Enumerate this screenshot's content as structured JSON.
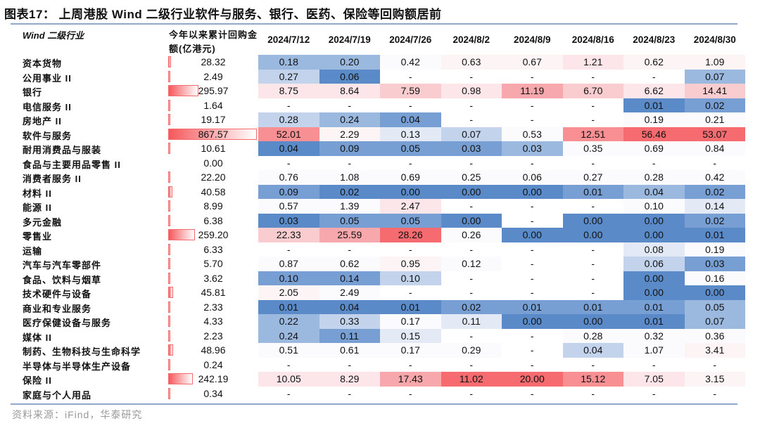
{
  "title": "图表17：  上周港股 Wind 二级行业软件与服务、银行、医药、保险等回购额居前",
  "source": "资料来源：iFind，华泰研究",
  "chart_data": {
    "type": "table",
    "title": "图表17：  上周港股 Wind 二级行业软件与服务、银行、医药、保险等回购额居前",
    "columns": {
      "name": "Wind 二级行业",
      "cumulative": "今年以来累计回购金额(亿港元)",
      "dates": [
        "2024/7/12",
        "2024/7/19",
        "2024/7/26",
        "2024/8/2",
        "2024/8/9",
        "2024/8/16",
        "2024/8/23",
        "2024/8/30"
      ]
    },
    "palette": {
      "b4": "#5a8bc8",
      "b3": "#779fd3",
      "b2": "#9bb8df",
      "b1": "#c2d3eb",
      "b0": "#e3eaf5",
      "w": "#fbfbfe",
      "p0": "#fdf4f6",
      "p1": "#fce6e9",
      "p2": "#f9cdd0",
      "p3": "#f7a8ac",
      "p4": "#f78f93",
      "p5": "#f56b6f",
      "n": "#ffffff"
    },
    "bar_color": "#f5585c",
    "bar_max": 867.57,
    "rows": [
      {
        "name": "资本货物",
        "cum": "28.32",
        "values": [
          "0.18",
          "0.20",
          "0.42",
          "0.63",
          "0.67",
          "1.21",
          "0.62",
          "1.09"
        ],
        "colors": [
          "b2",
          "b2",
          "w",
          "p0",
          "p0",
          "p1",
          "p0",
          "p0"
        ]
      },
      {
        "name": "公用事业 II",
        "cum": "2.49",
        "values": [
          "0.27",
          "0.06",
          "-",
          "-",
          "-",
          "-",
          "-",
          "0.07"
        ],
        "colors": [
          "b1",
          "b4",
          "n",
          "n",
          "n",
          "n",
          "n",
          "b2"
        ]
      },
      {
        "name": "银行",
        "cum": "295.97",
        "values": [
          "8.75",
          "8.64",
          "7.59",
          "0.98",
          "11.19",
          "6.70",
          "6.62",
          "14.41"
        ],
        "colors": [
          "p1",
          "p1",
          "p2",
          "p1",
          "p3",
          "p2",
          "p1",
          "p2"
        ]
      },
      {
        "name": "电信服务 II",
        "cum": "1.64",
        "values": [
          "-",
          "-",
          "-",
          "-",
          "-",
          "-",
          "0.01",
          "0.02"
        ],
        "colors": [
          "n",
          "n",
          "n",
          "n",
          "n",
          "n",
          "b4",
          "b3"
        ]
      },
      {
        "name": "房地产 II",
        "cum": "19.17",
        "values": [
          "0.28",
          "0.24",
          "0.04",
          "-",
          "-",
          "-",
          "0.19",
          "0.21"
        ],
        "colors": [
          "b1",
          "b2",
          "b3",
          "n",
          "n",
          "n",
          "w",
          "w"
        ]
      },
      {
        "name": "软件与服务",
        "cum": "867.57",
        "values": [
          "52.01",
          "2.29",
          "0.13",
          "0.07",
          "0.53",
          "12.51",
          "56.46",
          "53.07"
        ],
        "colors": [
          "p4",
          "p0",
          "b0",
          "b1",
          "w",
          "p4",
          "p5",
          "p5"
        ]
      },
      {
        "name": "耐用消费品与服装",
        "cum": "10.61",
        "values": [
          "0.04",
          "0.09",
          "0.05",
          "0.03",
          "0.03",
          "0.35",
          "0.69",
          "0.84"
        ],
        "colors": [
          "b4",
          "b3",
          "b3",
          "b3",
          "b2",
          "w",
          "w",
          "w"
        ]
      },
      {
        "name": "食品与主要用品零售 II",
        "cum": "0.00",
        "values": [
          "-",
          "-",
          "-",
          "-",
          "-",
          "-",
          "-",
          "-"
        ],
        "colors": [
          "n",
          "n",
          "n",
          "n",
          "n",
          "n",
          "n",
          "n"
        ]
      },
      {
        "name": "消费者服务 II",
        "cum": "22.20",
        "values": [
          "0.76",
          "1.08",
          "0.69",
          "0.25",
          "0.06",
          "0.27",
          "0.28",
          "0.42"
        ],
        "colors": [
          "w",
          "w",
          "w",
          "w",
          "w",
          "w",
          "w",
          "w"
        ]
      },
      {
        "name": "材料 II",
        "cum": "40.58",
        "values": [
          "0.09",
          "0.02",
          "0.00",
          "0.00",
          "0.00",
          "0.01",
          "0.04",
          "0.02"
        ],
        "colors": [
          "b3",
          "b4",
          "b4",
          "b4",
          "b4",
          "b3",
          "b2",
          "b3"
        ]
      },
      {
        "name": "能源 II",
        "cum": "8.99",
        "values": [
          "0.57",
          "1.39",
          "2.47",
          "-",
          "-",
          "-",
          "0.10",
          "0.14"
        ],
        "colors": [
          "w",
          "w",
          "p1",
          "n",
          "n",
          "n",
          "w",
          "b0"
        ]
      },
      {
        "name": "多元金融",
        "cum": "6.38",
        "values": [
          "0.03",
          "0.05",
          "0.05",
          "0.00",
          "-",
          "0.00",
          "0.00",
          "0.02"
        ],
        "colors": [
          "b4",
          "b3",
          "b3",
          "b4",
          "n",
          "b4",
          "b4",
          "b3"
        ]
      },
      {
        "name": "零售业",
        "cum": "259.20",
        "values": [
          "22.33",
          "25.59",
          "28.26",
          "0.26",
          "0.00",
          "0.00",
          "0.00",
          "0.01"
        ],
        "colors": [
          "p2",
          "p3",
          "p5",
          "w",
          "b4",
          "b4",
          "b4",
          "b4"
        ]
      },
      {
        "name": "运输",
        "cum": "6.33",
        "values": [
          "-",
          "-",
          "-",
          "-",
          "-",
          "-",
          "0.08",
          "0.19"
        ],
        "colors": [
          "n",
          "n",
          "n",
          "n",
          "n",
          "n",
          "b0",
          "w"
        ]
      },
      {
        "name": "汽车与汽车零部件",
        "cum": "5.70",
        "values": [
          "0.87",
          "0.62",
          "0.95",
          "0.12",
          "-",
          "-",
          "0.06",
          "0.03"
        ],
        "colors": [
          "w",
          "w",
          "p0",
          "w",
          "n",
          "n",
          "b1",
          "b3"
        ]
      },
      {
        "name": "食品、饮料与烟草",
        "cum": "3.62",
        "values": [
          "0.10",
          "0.14",
          "0.10",
          "-",
          "-",
          "-",
          "0.00",
          "0.16"
        ],
        "colors": [
          "b3",
          "b3",
          "b1",
          "n",
          "n",
          "n",
          "b4",
          "w"
        ]
      },
      {
        "name": "技术硬件与设备",
        "cum": "45.81",
        "values": [
          "2.05",
          "2.49",
          "-",
          "-",
          "-",
          "-",
          "0.00",
          "0.00"
        ],
        "colors": [
          "p0",
          "w",
          "n",
          "n",
          "n",
          "n",
          "b4",
          "b4"
        ]
      },
      {
        "name": "商业和专业服务",
        "cum": "2.33",
        "values": [
          "0.01",
          "0.04",
          "0.01",
          "0.02",
          "0.01",
          "0.01",
          "0.01",
          "0.05"
        ],
        "colors": [
          "b4",
          "b4",
          "b4",
          "b3",
          "b3",
          "b3",
          "b3",
          "b2"
        ]
      },
      {
        "name": "医疗保健设备与服务",
        "cum": "4.33",
        "values": [
          "0.22",
          "0.33",
          "0.17",
          "0.11",
          "0.00",
          "0.00",
          "0.01",
          "0.07"
        ],
        "colors": [
          "b2",
          "b1",
          "w",
          "b0",
          "b4",
          "b4",
          "b4",
          "b2"
        ]
      },
      {
        "name": "媒体 II",
        "cum": "2.23",
        "values": [
          "0.24",
          "0.11",
          "0.15",
          "-",
          "-",
          "0.28",
          "0.32",
          "0.36"
        ],
        "colors": [
          "b2",
          "b3",
          "b0",
          "n",
          "n",
          "w",
          "w",
          "w"
        ]
      },
      {
        "name": "制药、生物科技与生命科学",
        "cum": "48.96",
        "values": [
          "0.51",
          "0.61",
          "0.17",
          "0.29",
          "-",
          "0.04",
          "1.07",
          "3.41"
        ],
        "colors": [
          "w",
          "w",
          "w",
          "w",
          "n",
          "b1",
          "w",
          "p0"
        ]
      },
      {
        "name": "半导体与半导体生产设备",
        "cum": "0.24",
        "values": [
          "-",
          "-",
          "-",
          "-",
          "-",
          "-",
          "-",
          "-"
        ],
        "colors": [
          "n",
          "n",
          "n",
          "n",
          "n",
          "n",
          "n",
          "n"
        ]
      },
      {
        "name": "保险 II",
        "cum": "242.19",
        "values": [
          "10.05",
          "8.29",
          "17.43",
          "11.02",
          "20.00",
          "15.12",
          "7.05",
          "3.15"
        ],
        "colors": [
          "p1",
          "p1",
          "p3",
          "p5",
          "p5",
          "p4",
          "p1",
          "p0"
        ]
      },
      {
        "name": "家庭与个人用品",
        "cum": "0.34",
        "values": [
          "-",
          "-",
          "-",
          "-",
          "-",
          "-",
          "-",
          "-"
        ],
        "colors": [
          "n",
          "n",
          "n",
          "n",
          "n",
          "n",
          "n",
          "n"
        ]
      }
    ]
  }
}
